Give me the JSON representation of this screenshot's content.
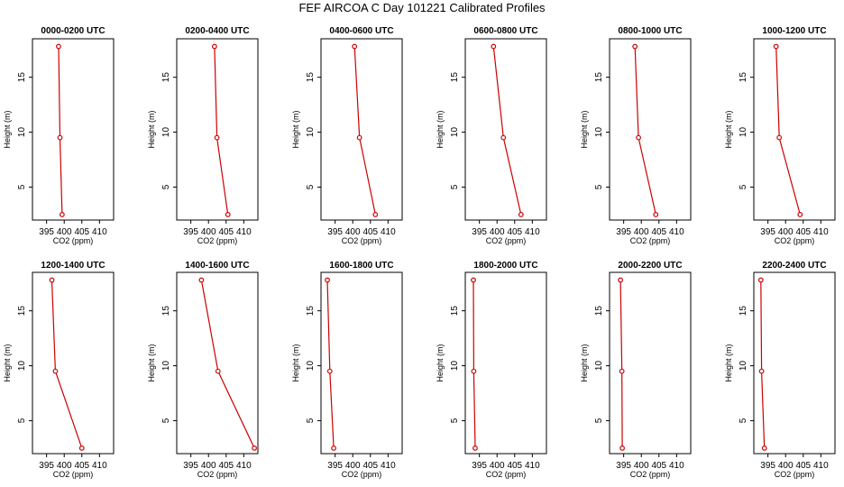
{
  "chart_data": {
    "type": "line",
    "title": "FEF AIRCOA C  Day 101221  Calibrated Profiles",
    "xlabel": "CO2 (ppm)",
    "ylabel": "Height (m)",
    "xlim": [
      391,
      414
    ],
    "ylim": [
      2,
      18.5
    ],
    "xticks": [
      395,
      400,
      405,
      410
    ],
    "yticks": [
      5,
      10,
      15
    ],
    "line_color": "#cc0000",
    "panels": [
      {
        "title": "0000-0200 UTC",
        "heights": [
          17.8,
          9.5,
          2.5
        ],
        "co2": [
          398.4,
          398.8,
          399.4
        ]
      },
      {
        "title": "0200-0400 UTC",
        "heights": [
          17.8,
          9.5,
          2.5
        ],
        "co2": [
          401.7,
          402.4,
          405.5
        ]
      },
      {
        "title": "0400-0600 UTC",
        "heights": [
          17.8,
          9.5,
          2.5
        ],
        "co2": [
          400.5,
          401.9,
          406.4
        ]
      },
      {
        "title": "0600-0800 UTC",
        "heights": [
          17.8,
          9.5,
          2.5
        ],
        "co2": [
          399.0,
          401.8,
          406.8
        ]
      },
      {
        "title": "0800-1000 UTC",
        "heights": [
          17.8,
          9.5,
          2.5
        ],
        "co2": [
          398.2,
          399.2,
          404.1
        ]
      },
      {
        "title": "1000-1200 UTC",
        "heights": [
          17.8,
          9.5,
          2.5
        ],
        "co2": [
          397.3,
          398.2,
          404.1
        ]
      },
      {
        "title": "1200-1400 UTC",
        "heights": [
          17.8,
          9.5,
          2.5
        ],
        "co2": [
          396.5,
          397.5,
          405.0
        ]
      },
      {
        "title": "1400-1600 UTC",
        "heights": [
          17.8,
          9.5,
          2.5
        ],
        "co2": [
          398.0,
          402.7,
          413.0
        ]
      },
      {
        "title": "1600-1800 UTC",
        "heights": [
          17.8,
          9.5,
          2.5
        ],
        "co2": [
          392.8,
          393.5,
          394.6
        ]
      },
      {
        "title": "1800-2000 UTC",
        "heights": [
          17.8,
          9.5,
          2.5
        ],
        "co2": [
          393.3,
          393.4,
          393.8
        ]
      },
      {
        "title": "2000-2200 UTC",
        "heights": [
          17.8,
          9.5,
          2.5
        ],
        "co2": [
          394.1,
          394.5,
          394.6
        ]
      },
      {
        "title": "2200-2400 UTC",
        "heights": [
          17.8,
          9.5,
          2.5
        ],
        "co2": [
          393.0,
          393.2,
          394.0
        ]
      }
    ]
  }
}
